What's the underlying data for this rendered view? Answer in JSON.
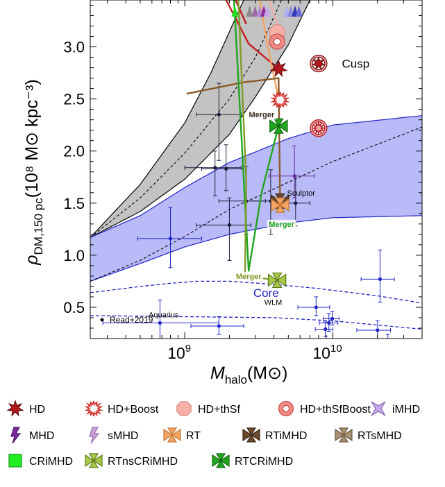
{
  "chart_data": {
    "type": "scatter",
    "xscale": "log",
    "xlim": [
      230000000,
      40000000000
    ],
    "ylim": [
      0.2,
      3.45
    ],
    "xlabel_main": "M",
    "xlabel_sub": "halo",
    "xlabel_unit": "(M⊙)",
    "ylabel_main": "ρ",
    "ylabel_sub": "DM,150 pc",
    "ylabel_unit": "(10⁸ M⊙ kpc⁻³)",
    "xticks": [
      {
        "value": 1000000000,
        "base": "10",
        "exp": "9"
      },
      {
        "value": 10000000000,
        "base": "10",
        "exp": "10"
      }
    ],
    "yticks": [
      {
        "value": 0.5,
        "label": "0.5"
      },
      {
        "value": 1.0,
        "label": "1.0"
      },
      {
        "value": 1.5,
        "label": "1.5"
      },
      {
        "value": 2.0,
        "label": "2.0"
      },
      {
        "value": 2.5,
        "label": "2.5"
      },
      {
        "value": 3.0,
        "label": "3.0"
      }
    ],
    "bands": [
      {
        "name": "Cusp",
        "color": "#b8b8b8",
        "lower": [
          [
            230000000,
            1.17
          ],
          [
            500000000,
            1.42
          ],
          [
            1000000000,
            1.73
          ],
          [
            2000000000,
            2.16
          ],
          [
            3000000000,
            2.52
          ],
          [
            5000000000,
            3.02
          ],
          [
            7000000000,
            3.45
          ]
        ],
        "upper": [
          [
            230000000,
            1.17
          ],
          [
            500000000,
            1.68
          ],
          [
            1000000000,
            2.27
          ],
          [
            1500000000,
            2.75
          ],
          [
            2500000000,
            3.45
          ]
        ],
        "center": [
          [
            230000000,
            1.17
          ],
          [
            500000000,
            1.55
          ],
          [
            1000000000,
            1.98
          ],
          [
            2000000000,
            2.5
          ],
          [
            3000000000,
            2.9
          ],
          [
            4500000000,
            3.45
          ]
        ]
      },
      {
        "name": "Core",
        "color": "#9a9ef5",
        "lower": [
          [
            230000000,
            0.75
          ],
          [
            500000000,
            0.92
          ],
          [
            1000000000,
            1.08
          ],
          [
            2000000000,
            1.2
          ],
          [
            5000000000,
            1.31
          ],
          [
            10000000000,
            1.36
          ],
          [
            40000000000,
            1.38
          ]
        ],
        "upper": [
          [
            230000000,
            1.17
          ],
          [
            500000000,
            1.38
          ],
          [
            1000000000,
            1.65
          ],
          [
            2000000000,
            1.89
          ],
          [
            5000000000,
            2.12
          ],
          [
            10000000000,
            2.25
          ],
          [
            40000000000,
            2.34
          ]
        ],
        "center": [
          [
            230000000,
            0.75
          ],
          [
            500000000,
            0.95
          ],
          [
            1000000000,
            1.18
          ],
          [
            2000000000,
            1.44
          ],
          [
            5000000000,
            1.7
          ],
          [
            10000000000,
            1.9
          ],
          [
            40000000000,
            2.23
          ]
        ]
      }
    ],
    "core_curves": [
      [
        [
          230000000,
          0.64
        ],
        [
          500000000,
          0.7
        ],
        [
          800000000,
          0.73
        ],
        [
          1200000000,
          0.75
        ],
        [
          2000000000,
          0.75
        ],
        [
          4000000000,
          0.72
        ],
        [
          8000000000,
          0.68
        ],
        [
          20000000000,
          0.61
        ],
        [
          40000000000,
          0.54
        ]
      ],
      [
        [
          230000000,
          0.42
        ],
        [
          1000000000,
          0.41
        ],
        [
          4000000000,
          0.4
        ],
        [
          10000000000,
          0.37
        ],
        [
          20000000000,
          0.33
        ],
        [
          40000000000,
          0.29
        ]
      ]
    ],
    "band_labels": [
      {
        "text": "Cusp",
        "x": 11500000000,
        "y": 2.8,
        "color": "#000000"
      },
      {
        "text": "Core",
        "x": 2900000000,
        "y": 0.6,
        "color": "#1f24c4"
      }
    ],
    "annotations": [
      {
        "text": "Merger",
        "x": 3300000000,
        "y": 2.33,
        "color": "#3a2a1a",
        "bg": true
      },
      {
        "text": "Merger",
        "x": 4500000000,
        "y": 1.28,
        "color": "#1fa51f",
        "bg": true
      },
      {
        "text": "Merger",
        "x": 2700000000,
        "y": 0.78,
        "color": "#7e9a2a",
        "bg": true
      },
      {
        "text": "Sculptor",
        "x": 6100000000,
        "y": 1.58,
        "color": "#000000",
        "bg": false
      },
      {
        "text": "Aquarius",
        "x": 720000000,
        "y": 0.41,
        "color": "#000000",
        "bg": false
      },
      {
        "text": "WLM",
        "x": 3950000000,
        "y": 0.53,
        "color": "#000000",
        "bg": false
      }
    ],
    "observations_label": "Read+2019",
    "observations": [
      {
        "x": 1700000000,
        "y": 2.35,
        "xerr": [
          1200000000,
          2400000000
        ],
        "yerr": [
          1.91,
          2.65
        ],
        "color": "#1a1a3a"
      },
      {
        "x": 1600000000,
        "y": 1.84,
        "xerr": [
          1000000000,
          2400000000
        ],
        "yerr": [
          1.57,
          2.0
        ],
        "color": "#1a1a3a"
      },
      {
        "x": 1900000000,
        "y": 1.83,
        "xerr": [
          1300000000,
          2500000000
        ],
        "yerr": [
          1.62,
          2.06
        ],
        "color": "#1a1a3a"
      },
      {
        "x": 2600000000,
        "y": 1.52,
        "xerr": [
          1700000000,
          3500000000
        ],
        "yerr": [
          1.2,
          1.85
        ],
        "color": "#1a1a3a"
      },
      {
        "x": 2000000000,
        "y": 1.29,
        "xerr": [
          1200000000,
          2800000000
        ],
        "yerr": [
          0.95,
          1.55
        ],
        "color": "#1a1a3a"
      },
      {
        "x": 3800000000,
        "y": 1.52,
        "xerr": [
          2600000000,
          5000000000
        ],
        "yerr": [
          1.2,
          1.82
        ],
        "color": "#1a1a3a"
      },
      {
        "x": 5600000000,
        "y": 1.5,
        "xerr": [
          4000000000,
          7000000000
        ],
        "yerr": [
          1.28,
          1.76
        ],
        "color": "#1a1a3a"
      },
      {
        "x": 5500000000,
        "y": 1.76,
        "xerr": [
          3700000000,
          7500000000
        ],
        "yerr": [
          1.55,
          2.05
        ],
        "color": "#6a2aa0"
      },
      {
        "x": 800000000,
        "y": 1.16,
        "xerr": [
          480000000,
          1300000000
        ],
        "yerr": [
          0.88,
          1.46
        ],
        "color": "#1f24c4"
      },
      {
        "x": 680000000,
        "y": 0.35,
        "xerr": [
          280000000,
          1700000000
        ],
        "yerr": [
          0.12,
          0.57
        ],
        "color": "#1f24c4"
      },
      {
        "x": 1700000000,
        "y": 0.32,
        "xerr": [
          1100000000,
          2500000000
        ],
        "yerr": [
          0.24,
          0.41
        ],
        "color": "#1f24c4"
      },
      {
        "x": 7700000000,
        "y": 0.5,
        "xerr": [
          5800000000,
          9500000000
        ],
        "yerr": [
          0.42,
          0.6
        ],
        "color": "#1f24c4"
      },
      {
        "x": 9900000000,
        "y": 0.39,
        "xerr": [
          8600000000,
          11000000000
        ],
        "yerr": [
          0.33,
          0.46
        ],
        "color": "#1f24c4"
      },
      {
        "x": 9400000000,
        "y": 0.35,
        "xerr": [
          8100000000,
          10800000000
        ],
        "yerr": [
          0.27,
          0.44
        ],
        "color": "#1f24c4"
      },
      {
        "x": 8900000000,
        "y": 0.29,
        "xerr": [
          7600000000,
          10000000000
        ],
        "yerr": [
          0.22,
          0.36
        ],
        "color": "#1f24c4"
      },
      {
        "x": 20800000000,
        "y": 0.77,
        "xerr": [
          15500000000,
          26000000000
        ],
        "yerr": [
          0.55,
          1.05
        ],
        "color": "#1f24c4"
      },
      {
        "x": 20000000000,
        "y": 0.28,
        "xerr": [
          14500000000,
          24500000000
        ],
        "yerr": [
          0.19,
          0.37
        ],
        "color": "#1f24c4"
      },
      {
        "x": 23500000000,
        "y": 0.17,
        "xerr": [
          19000000000,
          28000000000
        ],
        "yerr": [
          0.11,
          0.24
        ],
        "color": "#1f24c4"
      }
    ],
    "tracks": [
      {
        "color": "#c41c1c",
        "points": [
          [
            1900000000,
            3.45
          ],
          [
            2700000000,
            3.03
          ],
          [
            4300000000,
            2.79
          ]
        ]
      },
      {
        "color": "#c41c1c",
        "points": [
          [
            2200000000,
            3.45
          ],
          [
            2600000000,
            3.22
          ]
        ]
      },
      {
        "color": "#f4a262",
        "points": [
          [
            3200000000,
            3.45
          ],
          [
            3700000000,
            2.95
          ],
          [
            4400000000,
            2.43
          ]
        ]
      },
      {
        "color": "#f5b0a8",
        "points": [
          [
            3700000000,
            3.45
          ],
          [
            4300000000,
            3.18
          ]
        ]
      },
      {
        "color": "#8b5a2b",
        "points": [
          [
            1030000000,
            2.55
          ],
          [
            2500000000,
            2.66
          ],
          [
            4300000000,
            2.7
          ],
          [
            4400000000,
            1.52
          ]
        ]
      },
      {
        "color": "#1fa51f",
        "points": [
          [
            2150000000,
            3.45
          ],
          [
            2400000000,
            2.2
          ],
          [
            2700000000,
            0.85
          ],
          [
            3300000000,
            1.6
          ],
          [
            4300000000,
            2.24
          ]
        ]
      },
      {
        "color": "#7e9a2a",
        "points": [
          [
            2300000000,
            3.45
          ],
          [
            2600000000,
            1.7
          ],
          [
            2550000000,
            0.8
          ],
          [
            4200000000,
            0.76
          ]
        ]
      }
    ],
    "markers": [
      {
        "label": "HD",
        "x": 4300000000,
        "y": 2.79,
        "shape": "star",
        "fill": "#b3171b",
        "stroke": "#6a0e0e"
      },
      {
        "label": "HD",
        "x": 8000000000,
        "y": 2.84,
        "shape": "ringstar",
        "fill": "#b3171b",
        "stroke": "#6a0e0e"
      },
      {
        "label": "HD+Boost",
        "x": 4400000000,
        "y": 2.49,
        "shape": "spiky",
        "fill": "#ffffff",
        "stroke": "#d0312d"
      },
      {
        "label": "HD+Boost",
        "x": 8000000000,
        "y": 2.22,
        "shape": "ringspiky",
        "fill": "#f2a0a0",
        "stroke": "#b3171b"
      },
      {
        "label": "HD+thSf",
        "x": 4200000000,
        "y": 3.14,
        "shape": "octagon",
        "fill": "#f5b0a8",
        "stroke": "#d88a84"
      },
      {
        "label": "HD+thSfBoost",
        "x": 4200000000,
        "y": 3.05,
        "shape": "ring",
        "fill": "#f08a84",
        "stroke": "#c4504a"
      },
      {
        "label": "RTCRiMHD",
        "x": 4300000000,
        "y": 2.24,
        "shape": "bowtie",
        "fill": "#1fa51f",
        "stroke": "#0e6a0e"
      },
      {
        "label": "RTiMHD",
        "x": 4400000000,
        "y": 1.52,
        "shape": "bowtie",
        "fill": "#6a4a2a",
        "stroke": "#3a2a1a"
      },
      {
        "label": "RT",
        "x": 4400000000,
        "y": 1.48,
        "shape": "bowtie",
        "fill": "#f4a262",
        "stroke": "#c47a3a"
      },
      {
        "label": "RTnsCRiMHD",
        "x": 4200000000,
        "y": 0.76,
        "shape": "bowtie",
        "fill": "#a8c84a",
        "stroke": "#5a7a1a"
      }
    ],
    "top_triangles": [
      {
        "x": 2180000000,
        "color": "#22dd22"
      },
      {
        "x": 2740000000,
        "color": "#8a8a8a"
      },
      {
        "x": 2980000000,
        "color": "#9a6aaa"
      },
      {
        "x": 3220000000,
        "color": "#b08ad0"
      },
      {
        "x": 3420000000,
        "color": "#8a2aa0"
      },
      {
        "x": 3600000000,
        "color": "#c8a8e8"
      },
      {
        "x": 4880000000,
        "color": "#b0b0f0"
      },
      {
        "x": 5200000000,
        "color": "#8a8ae0"
      },
      {
        "x": 5550000000,
        "color": "#3a3ab8"
      },
      {
        "x": 5900000000,
        "color": "#6a6ad8"
      }
    ],
    "legend": [
      {
        "label": "HD",
        "shape": "star",
        "fill": "#b3171b",
        "stroke": "#6a0e0e"
      },
      {
        "label": "HD+Boost",
        "shape": "spiky",
        "fill": "#ffffff",
        "stroke": "#d0312d"
      },
      {
        "label": "HD+thSf",
        "shape": "octagon",
        "fill": "#f5b0a8",
        "stroke": "#d88a84"
      },
      {
        "label": "HD+thSfBoost",
        "shape": "ring",
        "fill": "#f08a84",
        "stroke": "#c4504a"
      },
      {
        "label": "iMHD",
        "shape": "xcross",
        "fill": "#c8a8e8",
        "stroke": "#8a6ab0"
      },
      {
        "label": "MHD",
        "shape": "bolt",
        "fill": "#7a2a9a",
        "stroke": "#4a1a6a"
      },
      {
        "label": "sMHD",
        "shape": "bolt",
        "fill": "#c8a0d8",
        "stroke": "#9a70b0"
      },
      {
        "label": "RT",
        "shape": "bowtie",
        "fill": "#f4a262",
        "stroke": "#c47a3a"
      },
      {
        "label": "RTiMHD",
        "shape": "bowtie",
        "fill": "#6a4a2a",
        "stroke": "#3a2a1a"
      },
      {
        "label": "RTsMHD",
        "shape": "bowtie",
        "fill": "#a89070",
        "stroke": "#6a5a44"
      },
      {
        "label": "CRiMHD",
        "shape": "square",
        "fill": "#22ee22",
        "stroke": "#119911"
      },
      {
        "label": "RTnsCRiMHD",
        "shape": "bowtie",
        "fill": "#a8c84a",
        "stroke": "#5a7a1a"
      },
      {
        "label": "RTCRiMHD",
        "shape": "bowtie",
        "fill": "#1fa51f",
        "stroke": "#0e6a0e"
      }
    ]
  }
}
